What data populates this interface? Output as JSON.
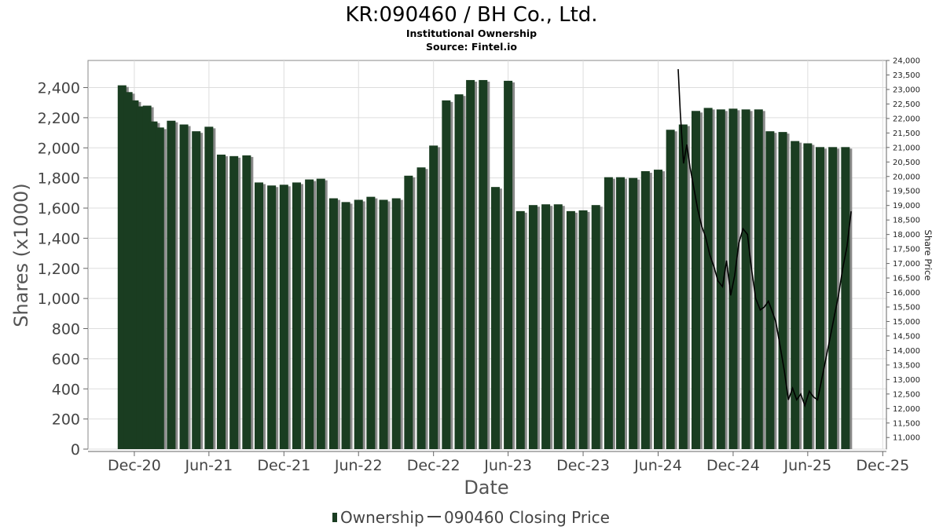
{
  "chart_data": {
    "type": "bar",
    "title": "KR:090460 / BH Co., Ltd.",
    "subtitle": "Institutional Ownership",
    "source": "Source: Fintel.io",
    "xlabel": "Date",
    "ylabel": "Shares (x1000)",
    "y2label": "Share Price",
    "ylim": [
      0,
      2580
    ],
    "y2lim": [
      10600,
      24000
    ],
    "xlim": [
      "2020-08-10",
      "2025-12-10"
    ],
    "grid": true,
    "legend_position": "bottom",
    "y_ticks": [
      "0",
      "200",
      "400",
      "600",
      "800",
      "1,000",
      "1,200",
      "1,400",
      "1,600",
      "1,800",
      "2,000",
      "2,200",
      "2,400"
    ],
    "y_tick_values": [
      0,
      200,
      400,
      600,
      800,
      1000,
      1200,
      1400,
      1600,
      1800,
      2000,
      2200,
      2400
    ],
    "y2_ticks": [
      "11,000",
      "11,500",
      "12,000",
      "12,500",
      "13,000",
      "13,500",
      "14,000",
      "14,500",
      "15,000",
      "15,500",
      "16,000",
      "16,500",
      "17,000",
      "17,500",
      "18,000",
      "18,500",
      "19,000",
      "19,500",
      "20,000",
      "20,500",
      "21,000",
      "21,500",
      "22,000",
      "22,500",
      "23,000",
      "23,500",
      "24,000"
    ],
    "y2_tick_values": [
      11000,
      11500,
      12000,
      12500,
      13000,
      13500,
      14000,
      14500,
      15000,
      15500,
      16000,
      16500,
      17000,
      17500,
      18000,
      18500,
      19000,
      19500,
      20000,
      20500,
      21000,
      21500,
      22000,
      22500,
      23000,
      23500,
      24000
    ],
    "x_ticks": [
      "Dec-20",
      "Jun-21",
      "Dec-21",
      "Jun-22",
      "Dec-22",
      "Jun-23",
      "Dec-23",
      "Jun-24",
      "Dec-24",
      "Jun-25",
      "Dec-25"
    ],
    "x_tick_dates": [
      "2020-12-01",
      "2021-06-01",
      "2021-12-01",
      "2022-06-01",
      "2022-12-01",
      "2023-06-01",
      "2023-12-01",
      "2024-06-01",
      "2024-12-01",
      "2025-06-01",
      "2025-12-01"
    ],
    "colors": {
      "bar": "#1a3d21",
      "bar_shadow": "#8a8a8a",
      "line": "#000000",
      "grid": "#dddddd"
    },
    "series": [
      {
        "name": "Ownership",
        "kind": "bar",
        "dates": [
          "2020-11-01",
          "2020-11-16",
          "2020-12-01",
          "2020-12-16",
          "2021-01-01",
          "2021-01-16",
          "2021-02-01",
          "2021-03-01",
          "2021-04-01",
          "2021-05-01",
          "2021-06-01",
          "2021-07-01",
          "2021-08-01",
          "2021-09-01",
          "2021-10-01",
          "2021-11-01",
          "2021-12-01",
          "2022-01-01",
          "2022-02-01",
          "2022-03-01",
          "2022-04-01",
          "2022-05-01",
          "2022-06-01",
          "2022-07-01",
          "2022-08-01",
          "2022-09-01",
          "2022-10-01",
          "2022-11-01",
          "2022-12-01",
          "2023-01-01",
          "2023-02-01",
          "2023-03-01",
          "2023-04-01",
          "2023-05-01",
          "2023-06-01",
          "2023-07-01",
          "2023-08-01",
          "2023-09-01",
          "2023-10-01",
          "2023-11-01",
          "2023-12-01",
          "2024-01-01",
          "2024-02-01",
          "2024-03-01",
          "2024-04-01",
          "2024-05-01",
          "2024-06-01",
          "2024-07-01",
          "2024-08-01",
          "2024-09-01",
          "2024-10-01",
          "2024-11-01",
          "2024-12-01",
          "2025-01-01",
          "2025-02-01",
          "2025-03-01",
          "2025-04-01",
          "2025-05-01",
          "2025-06-01",
          "2025-07-01",
          "2025-08-01",
          "2025-09-01"
        ],
        "values": [
          2415,
          2370,
          2315,
          2275,
          2280,
          2175,
          2135,
          2180,
          2155,
          2110,
          2140,
          1955,
          1945,
          1950,
          1770,
          1750,
          1755,
          1770,
          1790,
          1795,
          1665,
          1640,
          1655,
          1675,
          1655,
          1665,
          1815,
          1870,
          2015,
          2315,
          2355,
          2450,
          2450,
          1740,
          2445,
          1580,
          1620,
          1625,
          1625,
          1580,
          1585,
          1620,
          1805,
          1805,
          1800,
          1845,
          1855,
          2120,
          2155,
          2245,
          2265,
          2255,
          2260,
          2255,
          2255,
          2110,
          2105,
          2045,
          2030,
          2005,
          2005,
          2005
        ]
      },
      {
        "name": "090460 Closing Price",
        "kind": "line",
        "axis": "right",
        "dates": [
          "2024-07-20",
          "2024-07-25",
          "2024-08-02",
          "2024-08-10",
          "2024-08-18",
          "2024-08-26",
          "2024-09-05",
          "2024-09-15",
          "2024-09-25",
          "2024-10-05",
          "2024-10-15",
          "2024-10-25",
          "2024-11-05",
          "2024-11-15",
          "2024-11-25",
          "2024-12-05",
          "2024-12-15",
          "2024-12-25",
          "2025-01-05",
          "2025-01-15",
          "2025-01-25",
          "2025-02-05",
          "2025-02-15",
          "2025-02-25",
          "2025-03-05",
          "2025-03-15",
          "2025-03-25",
          "2025-04-05",
          "2025-04-15",
          "2025-04-25",
          "2025-05-05",
          "2025-05-15",
          "2025-05-25",
          "2025-06-05",
          "2025-06-15",
          "2025-06-25",
          "2025-07-05",
          "2025-07-15",
          "2025-07-25",
          "2025-08-05",
          "2025-08-15",
          "2025-08-25",
          "2025-09-05",
          "2025-09-15"
        ],
        "values": [
          23700,
          22200,
          20450,
          21100,
          20300,
          19700,
          18900,
          18300,
          17900,
          17300,
          16900,
          16400,
          16200,
          17100,
          15900,
          16600,
          17700,
          18200,
          18000,
          16800,
          15800,
          15400,
          15500,
          15700,
          15400,
          15000,
          14200,
          13300,
          12300,
          12700,
          12300,
          12500,
          12100,
          12600,
          12400,
          12300,
          13000,
          13700,
          14400,
          15200,
          15900,
          16800,
          17600,
          18800
        ]
      }
    ]
  }
}
